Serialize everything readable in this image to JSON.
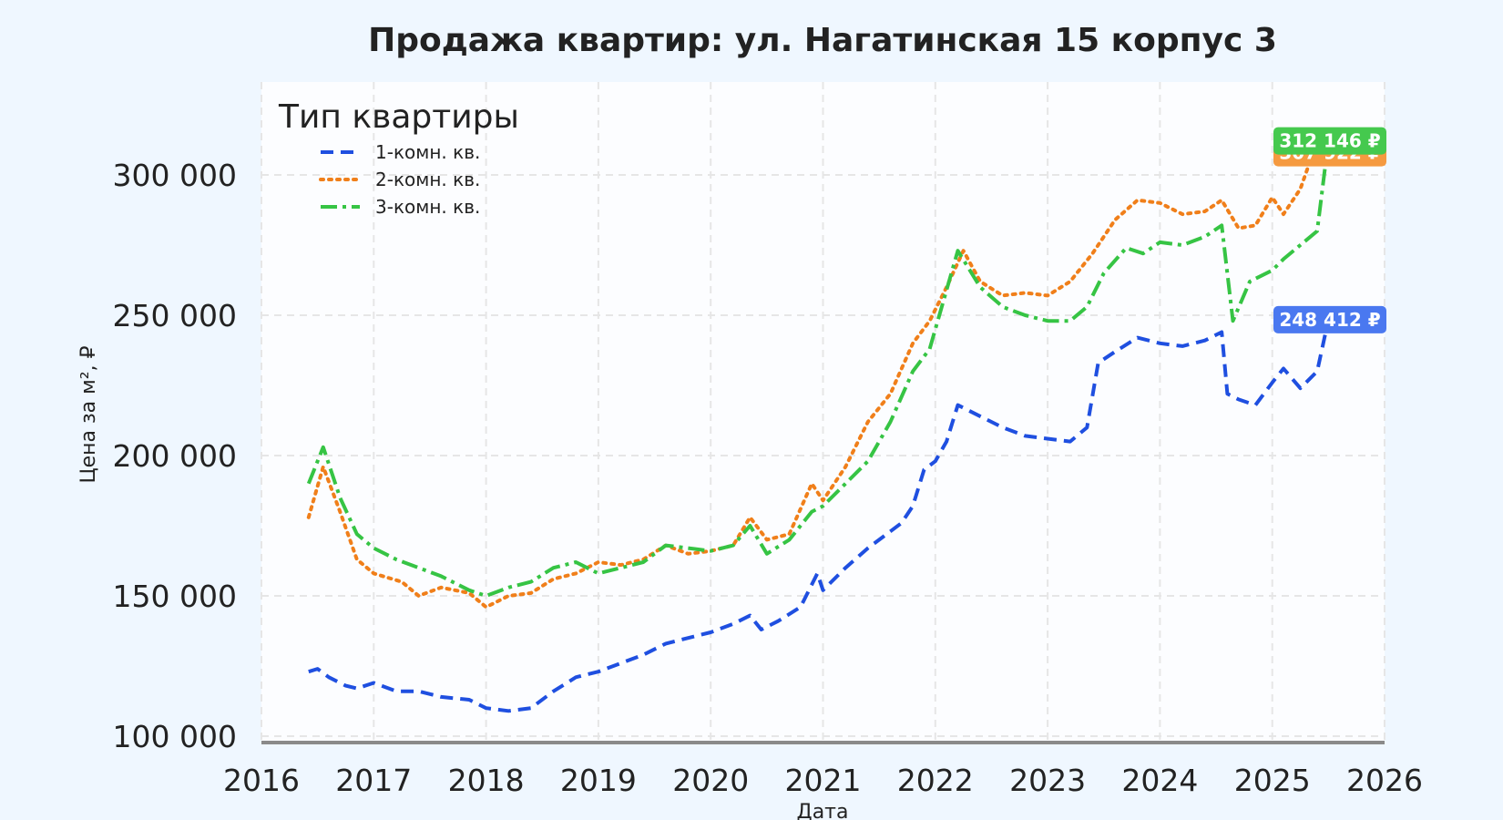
{
  "chart_data": {
    "type": "line",
    "title": "Продажа квартир: ул. Нагатинская 15 корпус 3",
    "xlabel": "Дата",
    "ylabel": "Цена за м², ₽",
    "xlim": [
      2016,
      2026
    ],
    "ylim": [
      100000,
      330000
    ],
    "x_ticks": [
      "2016",
      "2017",
      "2018",
      "2019",
      "2020",
      "2021",
      "2022",
      "2023",
      "2024",
      "2025",
      "2026"
    ],
    "y_ticks": [
      {
        "value": 100000,
        "label": "100 000"
      },
      {
        "value": 150000,
        "label": "150 000"
      },
      {
        "value": 200000,
        "label": "200 000"
      },
      {
        "value": 250000,
        "label": "250 000"
      },
      {
        "value": 300000,
        "label": "300 000"
      }
    ],
    "grid": true,
    "legend": {
      "title": "Тип квартиры",
      "position": "top-left"
    },
    "series": [
      {
        "name": "1-комн. кв.",
        "color": "#1f4fe0",
        "dash": "dashed",
        "end_label": "248 412 ₽",
        "end_label_color": "#4a78f0",
        "x": [
          2016.42,
          2016.5,
          2016.6,
          2016.75,
          2016.85,
          2017.0,
          2017.2,
          2017.4,
          2017.6,
          2017.85,
          2018.0,
          2018.2,
          2018.4,
          2018.6,
          2018.8,
          2019.0,
          2019.2,
          2019.4,
          2019.6,
          2019.8,
          2020.0,
          2020.2,
          2020.35,
          2020.45,
          2020.6,
          2020.8,
          2020.95,
          2021.0,
          2021.2,
          2021.4,
          2021.6,
          2021.7,
          2021.8,
          2021.9,
          2022.0,
          2022.1,
          2022.2,
          2022.4,
          2022.6,
          2022.8,
          2023.0,
          2023.2,
          2023.35,
          2023.45,
          2023.6,
          2023.8,
          2024.0,
          2024.2,
          2024.4,
          2024.55,
          2024.6,
          2024.7,
          2024.85,
          2025.0,
          2025.1,
          2025.25,
          2025.4,
          2025.5
        ],
        "values": [
          123000,
          124000,
          121000,
          118000,
          117000,
          119000,
          116000,
          116000,
          114000,
          113000,
          110000,
          109000,
          110000,
          116000,
          121000,
          123000,
          126000,
          129000,
          133000,
          135000,
          137000,
          140000,
          143000,
          138000,
          141000,
          146000,
          158000,
          152000,
          160000,
          167000,
          173000,
          176000,
          182000,
          195000,
          198000,
          205000,
          218000,
          214000,
          210000,
          207000,
          206000,
          205000,
          210000,
          233000,
          237000,
          242000,
          240000,
          239000,
          241000,
          244000,
          222000,
          220000,
          218000,
          226000,
          231000,
          224000,
          230000,
          248412
        ]
      },
      {
        "name": "2-комн. кв.",
        "color": "#f07f1a",
        "dash": "dotted",
        "end_label": "307 922 ₽",
        "end_label_color": "#f59a40",
        "x": [
          2016.42,
          2016.55,
          2016.7,
          2016.85,
          2017.0,
          2017.25,
          2017.4,
          2017.6,
          2017.85,
          2018.0,
          2018.2,
          2018.4,
          2018.6,
          2018.8,
          2019.0,
          2019.2,
          2019.4,
          2019.6,
          2019.8,
          2020.0,
          2020.2,
          2020.35,
          2020.5,
          2020.7,
          2020.9,
          2021.0,
          2021.2,
          2021.4,
          2021.6,
          2021.8,
          2021.95,
          2022.1,
          2022.25,
          2022.4,
          2022.6,
          2022.8,
          2023.0,
          2023.2,
          2023.4,
          2023.6,
          2023.8,
          2024.0,
          2024.2,
          2024.4,
          2024.55,
          2024.7,
          2024.85,
          2025.0,
          2025.1,
          2025.25,
          2025.4,
          2025.5
        ],
        "values": [
          178000,
          196000,
          180000,
          163000,
          158000,
          155000,
          150000,
          153000,
          151000,
          146000,
          150000,
          151000,
          156000,
          158000,
          162000,
          161000,
          163000,
          168000,
          165000,
          166000,
          168000,
          178000,
          170000,
          172000,
          190000,
          184000,
          196000,
          212000,
          222000,
          240000,
          248000,
          260000,
          273000,
          262000,
          257000,
          258000,
          257000,
          262000,
          272000,
          284000,
          291000,
          290000,
          286000,
          287000,
          291000,
          281000,
          282000,
          292000,
          286000,
          295000,
          312000,
          307922
        ]
      },
      {
        "name": "3-комн. кв.",
        "color": "#36c444",
        "dash": "dashdot",
        "end_label": "312 146 ₽",
        "end_label_color": "#45c94e",
        "x": [
          2016.42,
          2016.55,
          2016.7,
          2016.85,
          2017.0,
          2017.2,
          2017.4,
          2017.6,
          2017.85,
          2018.0,
          2018.2,
          2018.4,
          2018.6,
          2018.8,
          2019.0,
          2019.2,
          2019.4,
          2019.6,
          2019.8,
          2020.0,
          2020.2,
          2020.35,
          2020.5,
          2020.7,
          2020.9,
          2021.0,
          2021.2,
          2021.4,
          2021.6,
          2021.8,
          2021.95,
          2022.05,
          2022.2,
          2022.4,
          2022.6,
          2022.8,
          2023.0,
          2023.2,
          2023.35,
          2023.5,
          2023.7,
          2023.85,
          2024.0,
          2024.2,
          2024.4,
          2024.55,
          2024.65,
          2024.8,
          2025.0,
          2025.1,
          2025.25,
          2025.4,
          2025.5
        ],
        "values": [
          190000,
          203000,
          185000,
          172000,
          167000,
          163000,
          160000,
          157000,
          152000,
          150000,
          153000,
          155000,
          160000,
          162000,
          158000,
          160000,
          162000,
          168000,
          167000,
          166000,
          168000,
          175000,
          165000,
          170000,
          180000,
          182000,
          190000,
          198000,
          212000,
          230000,
          238000,
          252000,
          273000,
          260000,
          253000,
          250000,
          248000,
          248000,
          253000,
          265000,
          274000,
          272000,
          276000,
          275000,
          278000,
          282000,
          248000,
          262000,
          266000,
          270000,
          275000,
          280000,
          312146
        ]
      }
    ]
  }
}
